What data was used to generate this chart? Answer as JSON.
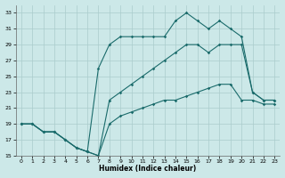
{
  "xlabel": "Humidex (Indice chaleur)",
  "bg_color": "#cce8e8",
  "grid_color": "#aacccc",
  "line_color": "#1a6b6b",
  "xlim": [
    -0.5,
    23.5
  ],
  "ylim": [
    15,
    34
  ],
  "xticks": [
    0,
    1,
    2,
    3,
    4,
    5,
    6,
    7,
    8,
    9,
    10,
    11,
    12,
    13,
    14,
    15,
    16,
    17,
    18,
    19,
    20,
    21,
    22,
    23
  ],
  "yticks": [
    15,
    17,
    19,
    21,
    23,
    25,
    27,
    29,
    31,
    33
  ],
  "series1_x": [
    0,
    1,
    2,
    3,
    4,
    5,
    6,
    7,
    8,
    9,
    10,
    11,
    12,
    13,
    14,
    15,
    16,
    17,
    18,
    19,
    20,
    21,
    22,
    23
  ],
  "series1_y": [
    19,
    19,
    18,
    18,
    17,
    16,
    15.5,
    15,
    19,
    20,
    20.5,
    21,
    21.5,
    22,
    22,
    22.5,
    23,
    23.5,
    24,
    24,
    22,
    22,
    21.5,
    21.5
  ],
  "series2_x": [
    0,
    1,
    2,
    3,
    4,
    5,
    6,
    7,
    8,
    9,
    10,
    11,
    12,
    13,
    14,
    15,
    16,
    17,
    18,
    19,
    20,
    21,
    22,
    23
  ],
  "series2_y": [
    19,
    19,
    18,
    18,
    17,
    16,
    15.5,
    15,
    22,
    23,
    24,
    25,
    26,
    27,
    28,
    29,
    29,
    28,
    29,
    29,
    29,
    23,
    22,
    22
  ],
  "series3_x": [
    0,
    1,
    2,
    3,
    4,
    5,
    6,
    7,
    8,
    9,
    10,
    11,
    12,
    13,
    14,
    15,
    16,
    17,
    18,
    19,
    20,
    21,
    22,
    23
  ],
  "series3_y": [
    19,
    19,
    18,
    18,
    17,
    16,
    15.5,
    26,
    29,
    30,
    30,
    30,
    30,
    30,
    32,
    33,
    32,
    31,
    32,
    31,
    30,
    23,
    22,
    22
  ]
}
